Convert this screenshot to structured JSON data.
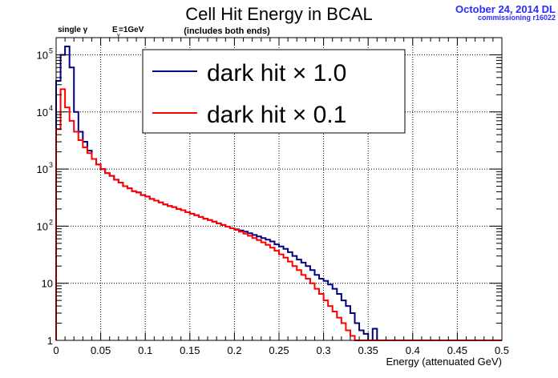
{
  "chart_data": {
    "type": "line",
    "title": "Cell Hit Energy in BCAL",
    "subtitle": "(includes both ends)",
    "annotations": {
      "particle": "single  γ",
      "energy_main": "E",
      "energy_sub": "γ",
      "energy_value": "=1GeV"
    },
    "stamp": {
      "date": "October 24, 2014 DL",
      "label": "commissioning r16022"
    },
    "xlabel": "Energy (attenuated GeV)",
    "ylabel": "",
    "xlim": [
      0,
      0.5
    ],
    "ylim": [
      1,
      200000
    ],
    "yscale": "log",
    "grid": true,
    "legend_position": "top",
    "x_ticks": [
      "0",
      "0.05",
      "0.1",
      "0.15",
      "0.2",
      "0.25",
      "0.3",
      "0.35",
      "0.4",
      "0.45",
      "0.5"
    ],
    "y_ticks": [
      {
        "value": 1,
        "label": "1"
      },
      {
        "value": 10,
        "label": "10"
      },
      {
        "value": 100,
        "label": "10",
        "exp": "2"
      },
      {
        "value": 1000,
        "label": "10",
        "exp": "3"
      },
      {
        "value": 10000,
        "label": "10",
        "exp": "4"
      },
      {
        "value": 100000,
        "label": "10",
        "exp": "5"
      }
    ],
    "bin_width": 0.005,
    "series": [
      {
        "name": "dark hit × 1.0",
        "color": "#000080",
        "values": [
          35000,
          100000,
          140000,
          60000,
          10000,
          4500,
          3000,
          2100,
          1500,
          1200,
          1000,
          850,
          760,
          650,
          580,
          500,
          460,
          410,
          390,
          350,
          330,
          300,
          280,
          260,
          240,
          225,
          215,
          200,
          190,
          175,
          165,
          155,
          145,
          135,
          128,
          120,
          112,
          105,
          98,
          92,
          88,
          84,
          80,
          75,
          70,
          66,
          62,
          58,
          54,
          48,
          44,
          40,
          35,
          30,
          26,
          23,
          20,
          17,
          14,
          12,
          11,
          9.5,
          8,
          6.5,
          5,
          4,
          3,
          2,
          1.5,
          1.3,
          1,
          1.6,
          1,
          1,
          1,
          1,
          1,
          1,
          1,
          1,
          1,
          1,
          1,
          1,
          1,
          1,
          1,
          1,
          1,
          1,
          1,
          1,
          1,
          1,
          1,
          1,
          1,
          1,
          1,
          1
        ]
      },
      {
        "name": "dark hit × 0.1",
        "color": "#ff0000",
        "values": [
          5000,
          25000,
          12000,
          7000,
          4500,
          3200,
          2400,
          1900,
          1500,
          1200,
          1000,
          850,
          760,
          650,
          580,
          500,
          460,
          410,
          390,
          350,
          330,
          300,
          280,
          260,
          240,
          225,
          215,
          200,
          190,
          175,
          165,
          155,
          145,
          135,
          128,
          120,
          112,
          105,
          98,
          92,
          86,
          80,
          74,
          68,
          62,
          57,
          52,
          47,
          42,
          37,
          32,
          28,
          24,
          20,
          17,
          14,
          12,
          10,
          8,
          6.5,
          5,
          4,
          3.2,
          2.5,
          2,
          1.5,
          1.2,
          1,
          1,
          1,
          1,
          1,
          1,
          1,
          1,
          1,
          1,
          1,
          1,
          1,
          1,
          1,
          1,
          1,
          1,
          1,
          1,
          1,
          1,
          1,
          1,
          1,
          1,
          1,
          1,
          1,
          1,
          1,
          1,
          1
        ]
      }
    ]
  }
}
